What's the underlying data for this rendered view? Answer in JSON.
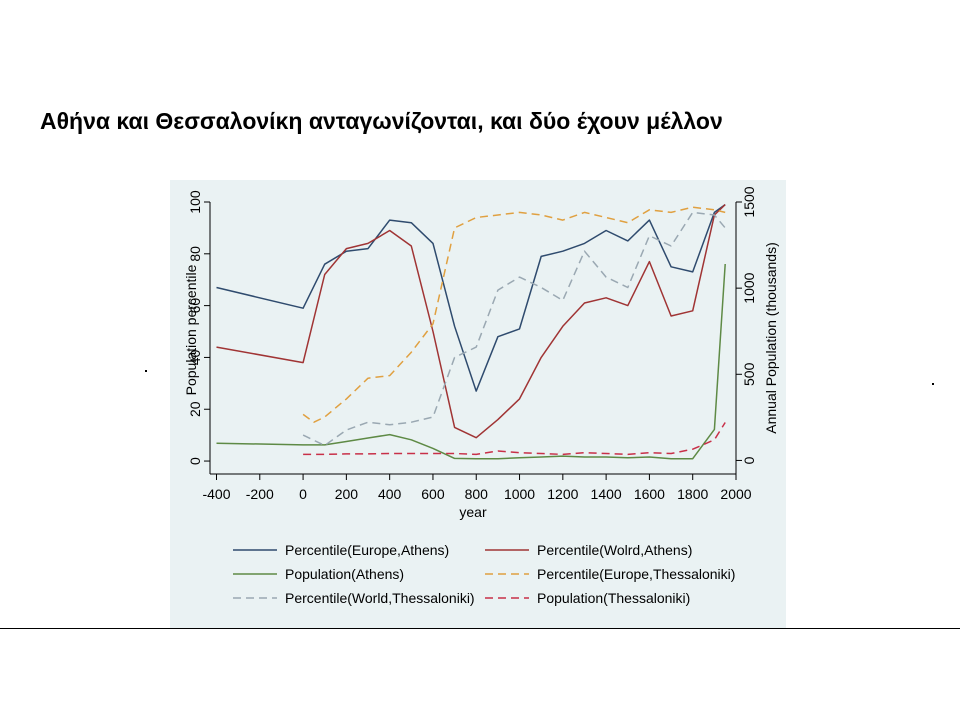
{
  "slide": {
    "title": "Αθήνα και Θεσσαλονίκη ανταγωνίζονται, και δύο έχουν μέλλον"
  },
  "chart_data": {
    "type": "line",
    "xlabel": "year",
    "ylabel_left": "Population percentile",
    "ylabel_right": "Annual Population (thousands)",
    "xlim": [
      -430,
      2000
    ],
    "ylim_left": [
      -5,
      100
    ],
    "ylim_right": [
      -78.75,
      1500
    ],
    "x_ticks": [
      -400,
      -200,
      0,
      200,
      400,
      600,
      800,
      1000,
      1200,
      1400,
      1600,
      1800,
      2000
    ],
    "y_left_ticks": [
      0,
      20,
      40,
      60,
      80,
      100
    ],
    "y_right_ticks": [
      0,
      500,
      1000,
      1500
    ],
    "grid": false,
    "legend_position": "bottom",
    "series": [
      {
        "name": "Percentile(Europe,Athens)",
        "axis": "left",
        "color": "#2f4b6e",
        "dash": "solid",
        "points": [
          [
            -400,
            67
          ],
          [
            0,
            59
          ],
          [
            100,
            76
          ],
          [
            200,
            81
          ],
          [
            300,
            82
          ],
          [
            400,
            93
          ],
          [
            500,
            92
          ],
          [
            600,
            84
          ],
          [
            700,
            52
          ],
          [
            800,
            27
          ],
          [
            900,
            48
          ],
          [
            1000,
            51
          ],
          [
            1100,
            79
          ],
          [
            1200,
            81
          ],
          [
            1300,
            84
          ],
          [
            1400,
            89
          ],
          [
            1500,
            85
          ],
          [
            1600,
            93
          ],
          [
            1700,
            75
          ],
          [
            1800,
            73
          ],
          [
            1900,
            96
          ],
          [
            1950,
            99
          ]
        ]
      },
      {
        "name": "Percentile(Wolrd,Athens)",
        "axis": "left",
        "color": "#a03434",
        "dash": "solid",
        "points": [
          [
            -400,
            44
          ],
          [
            0,
            38
          ],
          [
            100,
            72
          ],
          [
            200,
            82
          ],
          [
            300,
            84
          ],
          [
            400,
            89
          ],
          [
            500,
            83
          ],
          [
            600,
            50
          ],
          [
            700,
            13
          ],
          [
            800,
            9
          ],
          [
            900,
            16
          ],
          [
            1000,
            24
          ],
          [
            1100,
            40
          ],
          [
            1200,
            52
          ],
          [
            1300,
            61
          ],
          [
            1400,
            63
          ],
          [
            1500,
            60
          ],
          [
            1600,
            77
          ],
          [
            1700,
            56
          ],
          [
            1800,
            58
          ],
          [
            1900,
            95
          ],
          [
            1950,
            99
          ]
        ]
      },
      {
        "name": "Population(Athens)",
        "axis": "right",
        "color": "#5e8a45",
        "dash": "solid",
        "points": [
          [
            -400,
            100
          ],
          [
            0,
            90
          ],
          [
            100,
            90
          ],
          [
            200,
            110
          ],
          [
            300,
            130
          ],
          [
            400,
            150
          ],
          [
            500,
            120
          ],
          [
            600,
            70
          ],
          [
            700,
            12
          ],
          [
            800,
            10
          ],
          [
            900,
            10
          ],
          [
            1000,
            15
          ],
          [
            1100,
            20
          ],
          [
            1200,
            25
          ],
          [
            1300,
            20
          ],
          [
            1400,
            20
          ],
          [
            1500,
            15
          ],
          [
            1600,
            20
          ],
          [
            1700,
            10
          ],
          [
            1800,
            10
          ],
          [
            1900,
            180
          ],
          [
            1950,
            1140
          ]
        ]
      },
      {
        "name": "Percentile(Europe,Thessaloniki)",
        "axis": "left",
        "color": "#e0a040",
        "dash": "dashed",
        "points": [
          [
            0,
            18
          ],
          [
            50,
            15
          ],
          [
            100,
            17
          ],
          [
            200,
            24
          ],
          [
            300,
            32
          ],
          [
            400,
            33
          ],
          [
            500,
            42
          ],
          [
            600,
            53
          ],
          [
            700,
            90
          ],
          [
            800,
            94
          ],
          [
            900,
            95
          ],
          [
            1000,
            96
          ],
          [
            1100,
            95
          ],
          [
            1200,
            93
          ],
          [
            1300,
            96
          ],
          [
            1400,
            94
          ],
          [
            1500,
            92
          ],
          [
            1600,
            97
          ],
          [
            1700,
            96
          ],
          [
            1800,
            98
          ],
          [
            1900,
            97
          ],
          [
            1950,
            96
          ]
        ]
      },
      {
        "name": "Percentile(World,Thessaloniki)",
        "axis": "left",
        "color": "#9aa8b2",
        "dash": "dashed",
        "points": [
          [
            0,
            10
          ],
          [
            100,
            6
          ],
          [
            200,
            12
          ],
          [
            300,
            15
          ],
          [
            400,
            14
          ],
          [
            500,
            15
          ],
          [
            600,
            17
          ],
          [
            700,
            40
          ],
          [
            800,
            44
          ],
          [
            900,
            66
          ],
          [
            1000,
            71
          ],
          [
            1100,
            67
          ],
          [
            1200,
            62
          ],
          [
            1300,
            81
          ],
          [
            1400,
            71
          ],
          [
            1500,
            67
          ],
          [
            1600,
            87
          ],
          [
            1700,
            83
          ],
          [
            1800,
            96
          ],
          [
            1900,
            95
          ],
          [
            1950,
            90
          ]
        ]
      },
      {
        "name": "Population(Thessaloniki)",
        "axis": "right",
        "color": "#c83048",
        "dash": "dashed",
        "points": [
          [
            0,
            35
          ],
          [
            100,
            35
          ],
          [
            200,
            38
          ],
          [
            300,
            38
          ],
          [
            400,
            40
          ],
          [
            500,
            40
          ],
          [
            600,
            40
          ],
          [
            700,
            40
          ],
          [
            800,
            35
          ],
          [
            900,
            55
          ],
          [
            1000,
            45
          ],
          [
            1100,
            40
          ],
          [
            1200,
            35
          ],
          [
            1300,
            45
          ],
          [
            1400,
            40
          ],
          [
            1500,
            35
          ],
          [
            1600,
            45
          ],
          [
            1700,
            40
          ],
          [
            1800,
            65
          ],
          [
            1900,
            120
          ],
          [
            1950,
            220
          ]
        ]
      }
    ]
  }
}
